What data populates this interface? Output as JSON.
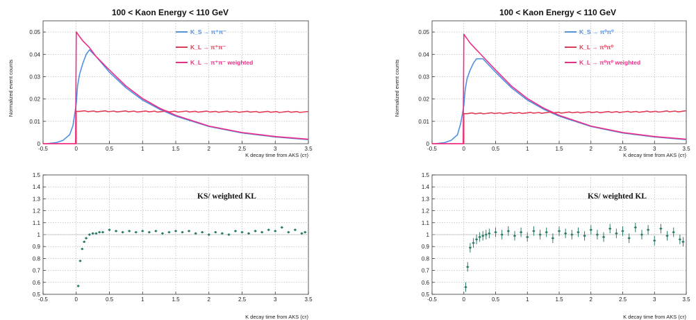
{
  "colors": {
    "ks": "#4f90e3",
    "kl": "#e23c55",
    "klw": "#ee2d86",
    "ratio": "#2c7a6a"
  },
  "chart_data": [
    {
      "type": "line",
      "title": "100 < Kaon Energy < 110 GeV",
      "xlabel": "K decay time from AKS (cτ)",
      "ylabel": "Normalized event counts",
      "xlim": [
        -0.5,
        3.5
      ],
      "ylim": [
        0,
        0.055
      ],
      "xticks": [
        "-0.5",
        "0",
        "0.5",
        "1",
        "1.5",
        "2",
        "2.5",
        "3",
        "3.5"
      ],
      "yticks": [
        "0",
        "0.01",
        "0.02",
        "0.03",
        "0.04",
        "0.05"
      ],
      "legend_position": "top-right",
      "series": [
        {
          "name": "K_S → π⁺π⁻",
          "color_key": "ks",
          "x": [
            -0.45,
            -0.3,
            -0.2,
            -0.1,
            -0.05,
            0,
            0.02,
            0.05,
            0.1,
            0.15,
            0.2,
            0.3,
            0.5,
            0.75,
            1.0,
            1.25,
            1.5,
            2.0,
            2.5,
            3.0,
            3.5
          ],
          "y": [
            0.0,
            0.0005,
            0.0015,
            0.004,
            0.008,
            0.018,
            0.026,
            0.031,
            0.036,
            0.04,
            0.042,
            0.039,
            0.032,
            0.025,
            0.0195,
            0.0155,
            0.0123,
            0.0077,
            0.0048,
            0.003,
            0.0018
          ]
        },
        {
          "name": "K_L → π⁺π⁻",
          "color_key": "kl",
          "x": [
            -0.5,
            -0.01,
            0,
            3.5
          ],
          "y": [
            0.0,
            0.0,
            0.0145,
            0.0142
          ]
        },
        {
          "name": "K_L → π⁺π⁻ weighted",
          "color_key": "klw",
          "x": [
            -0.5,
            -0.01,
            0,
            0.05,
            0.1,
            0.2,
            0.3,
            0.5,
            0.75,
            1.0,
            1.25,
            1.5,
            2.0,
            2.5,
            3.0,
            3.5
          ],
          "y": [
            0.0,
            0.0,
            0.05,
            0.048,
            0.046,
            0.043,
            0.039,
            0.033,
            0.0258,
            0.0202,
            0.016,
            0.0127,
            0.0079,
            0.005,
            0.0032,
            0.002
          ]
        }
      ]
    },
    {
      "type": "line",
      "title": "100 < Kaon Energy < 110 GeV",
      "xlabel": "K decay time from AKS (cτ)",
      "ylabel": "Normalized event counts",
      "xlim": [
        -0.5,
        3.5
      ],
      "ylim": [
        0,
        0.055
      ],
      "xticks": [
        "-0.5",
        "0",
        "0.5",
        "1",
        "1.5",
        "2",
        "2.5",
        "3",
        "3.5"
      ],
      "yticks": [
        "0",
        "0.01",
        "0.02",
        "0.03",
        "0.04",
        "0.05"
      ],
      "legend_position": "top-right",
      "series": [
        {
          "name": "K_S → π⁰π⁰",
          "color_key": "ks",
          "x": [
            -0.45,
            -0.3,
            -0.2,
            -0.1,
            -0.05,
            0,
            0.02,
            0.05,
            0.1,
            0.15,
            0.2,
            0.3,
            0.5,
            0.75,
            1.0,
            1.25,
            1.5,
            2.0,
            2.5,
            3.0,
            3.5
          ],
          "y": [
            0.0,
            0.0005,
            0.0015,
            0.004,
            0.009,
            0.017,
            0.024,
            0.029,
            0.033,
            0.036,
            0.038,
            0.038,
            0.032,
            0.025,
            0.0195,
            0.0155,
            0.0123,
            0.0077,
            0.0048,
            0.003,
            0.0018
          ]
        },
        {
          "name": "K_L → π⁰π⁰",
          "color_key": "kl",
          "x": [
            -0.5,
            -0.01,
            0,
            3.5
          ],
          "y": [
            0.0,
            0.0,
            0.0135,
            0.0145
          ]
        },
        {
          "name": "K_L → π⁰π⁰ weighted",
          "color_key": "klw",
          "x": [
            -0.5,
            -0.01,
            0,
            0.05,
            0.1,
            0.2,
            0.3,
            0.5,
            0.75,
            1.0,
            1.25,
            1.5,
            2.0,
            2.5,
            3.0,
            3.5
          ],
          "y": [
            0.0,
            0.0,
            0.049,
            0.047,
            0.045,
            0.042,
            0.039,
            0.033,
            0.0258,
            0.0202,
            0.016,
            0.0127,
            0.0079,
            0.005,
            0.0032,
            0.002
          ]
        }
      ]
    },
    {
      "type": "scatter",
      "title": "",
      "annotation": "KS/ weighted KL",
      "xlabel": "K decay time from AKS (cτ)",
      "ylabel": "",
      "xlim": [
        -0.5,
        3.5
      ],
      "ylim": [
        0.5,
        1.5
      ],
      "xticks": [
        "-0.5",
        "0",
        "0.5",
        "1",
        "1.5",
        "2",
        "2.5",
        "3",
        "3.5"
      ],
      "yticks": [
        "0.5",
        "0.6",
        "0.7",
        "0.8",
        "0.9",
        "1",
        "1.1",
        "1.2",
        "1.3",
        "1.4",
        "1.5"
      ],
      "series": [
        {
          "name": "KS/ weighted KL",
          "color_key": "ratio",
          "x": [
            0.03,
            0.06,
            0.09,
            0.12,
            0.15,
            0.2,
            0.25,
            0.3,
            0.35,
            0.4,
            0.5,
            0.6,
            0.7,
            0.8,
            0.9,
            1.0,
            1.1,
            1.2,
            1.3,
            1.4,
            1.5,
            1.6,
            1.7,
            1.8,
            1.9,
            2.0,
            2.1,
            2.2,
            2.3,
            2.4,
            2.5,
            2.6,
            2.7,
            2.8,
            2.9,
            3.0,
            3.1,
            3.2,
            3.3,
            3.4,
            3.45
          ],
          "y": [
            0.57,
            0.78,
            0.88,
            0.94,
            0.97,
            1.0,
            1.01,
            1.01,
            1.02,
            1.02,
            1.04,
            1.03,
            1.02,
            1.03,
            1.02,
            1.03,
            1.02,
            1.03,
            1.01,
            1.02,
            1.03,
            1.02,
            1.03,
            1.01,
            1.02,
            1.0,
            1.02,
            1.01,
            1.0,
            1.03,
            1.02,
            1.01,
            1.03,
            1.02,
            1.04,
            1.03,
            1.06,
            1.02,
            1.04,
            1.01,
            1.02
          ],
          "err": 0.01
        }
      ]
    },
    {
      "type": "scatter",
      "title": "",
      "annotation": "KS/ weighted KL",
      "xlabel": "K decay time from AKS (cτ)",
      "ylabel": "",
      "xlim": [
        -0.5,
        3.5
      ],
      "ylim": [
        0.5,
        1.5
      ],
      "xticks": [
        "-0.5",
        "0",
        "0.5",
        "1",
        "1.5",
        "2",
        "2.5",
        "3",
        "3.5"
      ],
      "yticks": [
        "0.5",
        "0.6",
        "0.7",
        "0.8",
        "0.9",
        "1",
        "1.1",
        "1.2",
        "1.3",
        "1.4",
        "1.5"
      ],
      "series": [
        {
          "name": "KS/ weighted KL",
          "color_key": "ratio",
          "x": [
            0.03,
            0.06,
            0.1,
            0.15,
            0.2,
            0.25,
            0.3,
            0.35,
            0.4,
            0.5,
            0.6,
            0.7,
            0.8,
            0.9,
            1.0,
            1.1,
            1.2,
            1.3,
            1.4,
            1.5,
            1.6,
            1.7,
            1.8,
            1.9,
            2.0,
            2.1,
            2.2,
            2.3,
            2.4,
            2.5,
            2.6,
            2.7,
            2.8,
            2.9,
            3.0,
            3.1,
            3.2,
            3.3,
            3.4,
            3.45
          ],
          "y": [
            0.56,
            0.73,
            0.89,
            0.93,
            0.96,
            0.98,
            0.99,
            1.0,
            1.01,
            1.02,
            1.0,
            1.03,
            0.99,
            1.02,
            0.98,
            1.03,
            1.0,
            1.02,
            0.97,
            1.03,
            1.01,
            1.0,
            1.02,
            0.99,
            1.04,
            1.0,
            0.98,
            1.05,
            1.01,
            1.03,
            0.97,
            1.06,
            1.0,
            1.04,
            0.95,
            1.05,
            0.99,
            1.02,
            0.96,
            0.94
          ],
          "err": 0.04
        }
      ]
    }
  ]
}
